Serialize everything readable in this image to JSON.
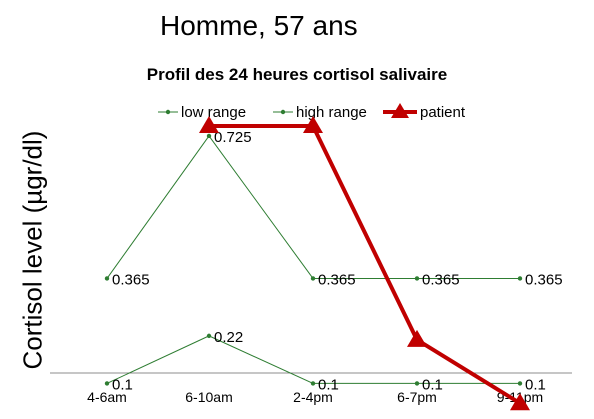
{
  "heading": "Homme, 57 ans",
  "chart_data": {
    "type": "line",
    "title": "Profil des 24 heures cortisol salivaire",
    "xlabel": "",
    "ylabel": "Cortisol level (µgr/dl)",
    "categories": [
      "4-6am",
      "6-10am",
      "2-4pm",
      "6-7pm",
      "9-11pm"
    ],
    "legend_position": "top",
    "grid": false,
    "series": [
      {
        "name": "low range",
        "values": [
          0.1,
          0.22,
          0.1,
          0.1,
          0.1
        ],
        "labels": [
          "0.1",
          "0.22",
          "0.1",
          "0.1",
          "0.1"
        ],
        "color": "#2e7d32",
        "marker": "dot"
      },
      {
        "name": "high range",
        "values": [
          0.365,
          0.725,
          0.365,
          0.365,
          0.365
        ],
        "labels": [
          "0.365",
          "0.725",
          "0.365",
          "0.365",
          "0.365"
        ],
        "color": "#2e7d32",
        "marker": "dot"
      },
      {
        "name": "patient",
        "values": [
          null,
          0.75,
          0.75,
          0.21,
          0.05
        ],
        "color": "#c00000",
        "marker": "triangle"
      }
    ]
  }
}
